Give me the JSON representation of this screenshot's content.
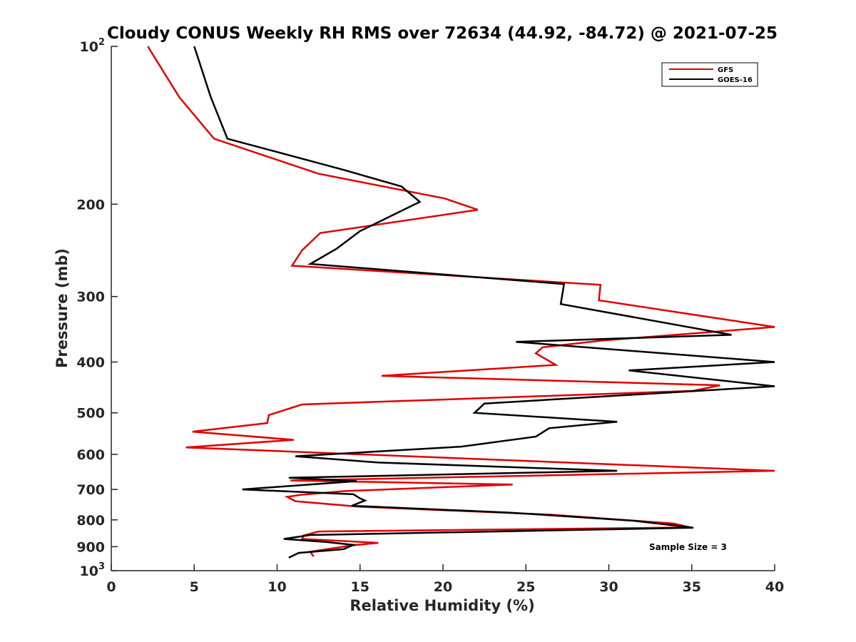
{
  "chart_data": {
    "type": "line",
    "title": "Cloudy CONUS Weekly RH RMS over 72634 (44.92, -84.72) @ 2021-07-25",
    "xlabel": "Relative Humidity (%)",
    "ylabel": "Pressure (mb)",
    "xlim": [
      0,
      40
    ],
    "ylim": [
      100,
      1000
    ],
    "y_scale": "log",
    "y_reversed": true,
    "x_ticks": [
      "0",
      "5",
      "10",
      "15",
      "20",
      "25",
      "30",
      "35",
      "40"
    ],
    "y_ticks": [
      {
        "value": 100,
        "base": "10",
        "exp": "2"
      },
      {
        "value": 200,
        "label": "200"
      },
      {
        "value": 300,
        "label": "300"
      },
      {
        "value": 400,
        "label": "400"
      },
      {
        "value": 500,
        "label": "500"
      },
      {
        "value": 600,
        "label": "600"
      },
      {
        "value": 700,
        "label": "700"
      },
      {
        "value": 800,
        "label": "800"
      },
      {
        "value": 900,
        "label": "900"
      },
      {
        "value": 1000,
        "base": "10",
        "exp": "3"
      }
    ],
    "grid": false,
    "legend_position": "top-right",
    "annotation": "Sample Size = 3",
    "series": [
      {
        "name": "GFS",
        "color": "#e00000",
        "points": [
          [
            2.2,
            100
          ],
          [
            4.1,
            125
          ],
          [
            6.2,
            150
          ],
          [
            12.5,
            175
          ],
          [
            20.1,
            195
          ],
          [
            22.1,
            205
          ],
          [
            12.6,
            227
          ],
          [
            11.5,
            245
          ],
          [
            10.9,
            262
          ],
          [
            29.5,
            285
          ],
          [
            29.4,
            305
          ],
          [
            40.0,
            343
          ],
          [
            29.6,
            364
          ],
          [
            26.0,
            375
          ],
          [
            25.6,
            385
          ],
          [
            26.8,
            405
          ],
          [
            16.3,
            425
          ],
          [
            36.7,
            443
          ],
          [
            35.1,
            454
          ],
          [
            11.5,
            482
          ],
          [
            9.5,
            505
          ],
          [
            9.4,
            523
          ],
          [
            4.9,
            543
          ],
          [
            11.0,
            563
          ],
          [
            4.5,
            582
          ],
          [
            40.0,
            645
          ],
          [
            10.8,
            673
          ],
          [
            24.2,
            685
          ],
          [
            14.1,
            705
          ],
          [
            11.4,
            717
          ],
          [
            10.6,
            723
          ],
          [
            11.1,
            737
          ],
          [
            14.9,
            755
          ],
          [
            26.5,
            782
          ],
          [
            33.9,
            813
          ],
          [
            34.9,
            827
          ],
          [
            12.5,
            842
          ],
          [
            11.6,
            857
          ],
          [
            11.5,
            870
          ],
          [
            16.1,
            885
          ],
          [
            14.5,
            895
          ],
          [
            12.0,
            920
          ],
          [
            12.2,
            940
          ]
        ]
      },
      {
        "name": "GOES-16",
        "color": "#000000",
        "points": [
          [
            5.0,
            100
          ],
          [
            6.0,
            125
          ],
          [
            7.0,
            150
          ],
          [
            14.0,
            172
          ],
          [
            17.5,
            185
          ],
          [
            18.6,
            198
          ],
          [
            15.0,
            225
          ],
          [
            13.6,
            243
          ],
          [
            12.0,
            260
          ],
          [
            27.3,
            284
          ],
          [
            27.1,
            310
          ],
          [
            37.4,
            355
          ],
          [
            24.4,
            366
          ],
          [
            40.0,
            400
          ],
          [
            31.2,
            415
          ],
          [
            40.0,
            445
          ],
          [
            22.5,
            480
          ],
          [
            22.2,
            490
          ],
          [
            21.9,
            500
          ],
          [
            30.5,
            520
          ],
          [
            26.4,
            535
          ],
          [
            25.6,
            555
          ],
          [
            21.1,
            580
          ],
          [
            11.1,
            605
          ],
          [
            16.1,
            622
          ],
          [
            30.5,
            645
          ],
          [
            10.7,
            665
          ],
          [
            14.8,
            675
          ],
          [
            7.9,
            700
          ],
          [
            14.6,
            715
          ],
          [
            15.0,
            728
          ],
          [
            15.3,
            735
          ],
          [
            14.5,
            752
          ],
          [
            24.0,
            775
          ],
          [
            31.5,
            803
          ],
          [
            35.1,
            828
          ],
          [
            12.0,
            855
          ],
          [
            10.4,
            870
          ],
          [
            13.0,
            882
          ],
          [
            14.6,
            893
          ],
          [
            14.0,
            910
          ],
          [
            11.3,
            925
          ],
          [
            10.7,
            945
          ]
        ]
      }
    ]
  }
}
